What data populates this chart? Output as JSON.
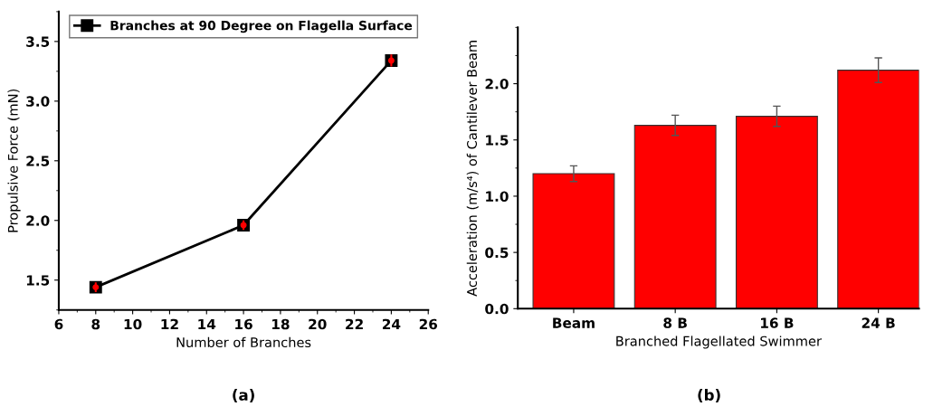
{
  "chart_data": [
    {
      "type": "line",
      "xlabel": "Number of Branches",
      "ylabel": "Propulsive Force (mN)",
      "x": [
        8,
        16,
        24
      ],
      "series": [
        {
          "name": "Branches at 90 Degree on Flagella Surface",
          "color": "#000000",
          "values": [
            1.44,
            1.96,
            3.34
          ],
          "errors": [
            0.04,
            0.04,
            0.05
          ]
        }
      ],
      "xlim": [
        6,
        26
      ],
      "xticks": [
        6,
        8,
        10,
        12,
        14,
        16,
        18,
        20,
        22,
        24,
        26
      ],
      "ylim": [
        1.25,
        3.75
      ],
      "yticks": [
        1.5,
        {
          "value": 2,
          "label": "2.0"
        },
        2.5,
        {
          "value": 3,
          "label": "3.0"
        },
        3.5
      ],
      "marker": "square",
      "line_style": "solid",
      "legend": "top",
      "grid": false,
      "annotations": [
        "(a)"
      ]
    },
    {
      "type": "bar",
      "xlabel": "Branched Flagellated Swimmer",
      "ylabel": "Acceleration (m/s⁴) of Cantilever Beam",
      "categories": [
        "Beam",
        "8 B",
        "16 B",
        "24 B"
      ],
      "values": [
        1.2,
        1.63,
        1.71,
        2.12
      ],
      "errors": [
        0.07,
        0.09,
        0.09,
        0.11
      ],
      "color": "#ff0000",
      "ylim": [
        0,
        2.5
      ],
      "yticks": [
        {
          "value": 0,
          "label": "0.0"
        },
        {
          "value": 0.5,
          "label": "0.5"
        },
        {
          "value": 1.0,
          "label": "1.0"
        },
        {
          "value": 1.5,
          "label": "1.5"
        },
        {
          "value": 2.0,
          "label": "2.0"
        }
      ],
      "grid": false,
      "annotations": [
        "(b)"
      ]
    }
  ]
}
